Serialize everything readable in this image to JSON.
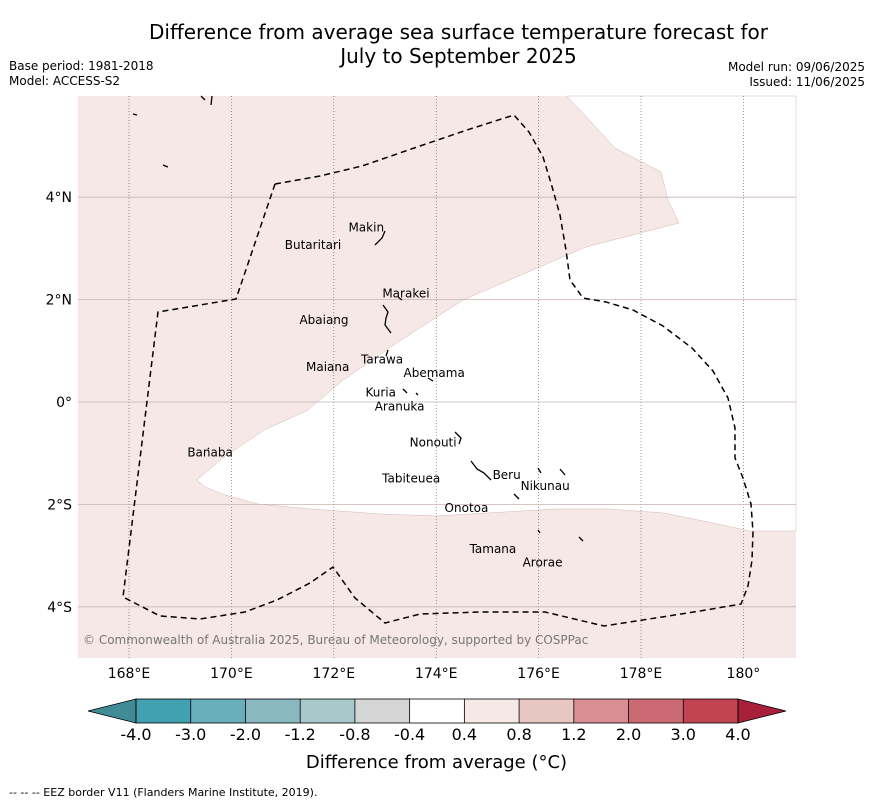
{
  "header": {
    "title_line1": "Difference from average sea surface temperature forecast for",
    "title_line2": "July to September 2025",
    "base_period": "Base period: 1981-2018",
    "model": "Model: ACCESS-S2",
    "model_run": "Model run: 09/06/2025",
    "issued": "Issued: 11/06/2025"
  },
  "map": {
    "lon_ticks": [
      "168°E",
      "170°E",
      "172°E",
      "174°E",
      "176°E",
      "178°E",
      "180°"
    ],
    "lat_ticks": [
      "4°N",
      "2°N",
      "0°",
      "2°S",
      "4°S"
    ],
    "copyright": "© Commonwealth of Australia 2025, Bureau of Meteorology, supported by COSPPac",
    "places": [
      {
        "name": "Makin",
        "lon": 172.97,
        "lat": 3.17
      },
      {
        "name": "Butaritari",
        "lon": 172.8,
        "lat": 3.07
      },
      {
        "name": "Marakei",
        "lon": 173.28,
        "lat": 2.0
      },
      {
        "name": "Abaiang",
        "lon": 172.95,
        "lat": 1.8
      },
      {
        "name": "Tarawa",
        "lon": 173.0,
        "lat": 1.42
      },
      {
        "name": "Maiana",
        "lon": 173.0,
        "lat": 0.92
      },
      {
        "name": "Abemama",
        "lon": 173.85,
        "lat": 0.45
      },
      {
        "name": "Kuria",
        "lon": 173.4,
        "lat": 0.22
      },
      {
        "name": "Aranuka",
        "lon": 173.6,
        "lat": 0.17
      },
      {
        "name": "Banaba",
        "lon": 169.53,
        "lat": -0.87
      },
      {
        "name": "Nonouti",
        "lon": 174.4,
        "lat": -0.65
      },
      {
        "name": "Tabiteuea",
        "lon": 174.8,
        "lat": -1.3
      },
      {
        "name": "Beru",
        "lon": 175.98,
        "lat": -1.35
      },
      {
        "name": "Nikunau",
        "lon": 176.45,
        "lat": -1.35
      },
      {
        "name": "Onotoa",
        "lon": 175.55,
        "lat": -1.8
      },
      {
        "name": "Tamana",
        "lon": 175.98,
        "lat": -2.5
      },
      {
        "name": "Arorae",
        "lon": 176.82,
        "lat": -2.65
      }
    ]
  },
  "colorbar": {
    "ticks": [
      "-4.0",
      "-3.0",
      "-2.0",
      "-1.2",
      "-0.8",
      "-0.4",
      "0.4",
      "0.8",
      "1.2",
      "2.0",
      "3.0",
      "4.0"
    ],
    "colors": [
      "#42a1b0",
      "#68aebb",
      "#89b8c1",
      "#a8c8cb",
      "#d5d5d5",
      "#ffffff",
      "#f5e8e6",
      "#e8c6c2",
      "#d98e94",
      "#cc6a73",
      "#c24452"
    ],
    "under_color": "#3f8c97",
    "over_color": "#a71f39",
    "label": "Difference from average (°C)"
  },
  "footer": {
    "eez_note": "--  --  -- EEZ border V11 (Flanders Marine Institute, 2019)."
  }
}
